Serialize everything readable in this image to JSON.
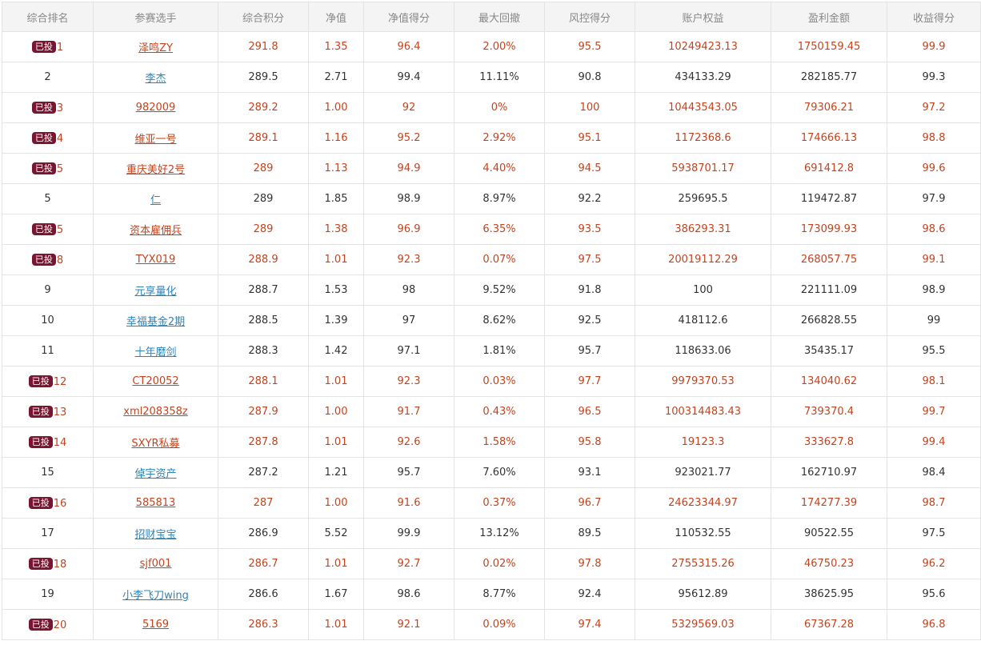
{
  "badge_label": "已投",
  "colors": {
    "invested_text": "#c2441f",
    "normal_text": "#333333",
    "link": "#2c84b8",
    "badge_bg": "#7a1531",
    "header_bg": "#f4f4f4"
  },
  "headers": [
    "综合排名",
    "参赛选手",
    "综合积分",
    "净值",
    "净值得分",
    "最大回撤",
    "风控得分",
    "账户权益",
    "盈利金额",
    "收益得分"
  ],
  "rows": [
    {
      "invested": true,
      "rank": "1",
      "name": "泽鸣ZY",
      "score": "291.8",
      "nav": "1.35",
      "nav_score": "96.4",
      "drawdown": "2.00%",
      "risk_score": "95.5",
      "equity": "10249423.13",
      "profit": "1750159.45",
      "return_score": "99.9"
    },
    {
      "invested": false,
      "rank": "2",
      "name": "李杰",
      "score": "289.5",
      "nav": "2.71",
      "nav_score": "99.4",
      "drawdown": "11.11%",
      "risk_score": "90.8",
      "equity": "434133.29",
      "profit": "282185.77",
      "return_score": "99.3"
    },
    {
      "invested": true,
      "rank": "3",
      "name": "982009",
      "score": "289.2",
      "nav": "1.00",
      "nav_score": "92",
      "drawdown": "0%",
      "risk_score": "100",
      "equity": "10443543.05",
      "profit": "79306.21",
      "return_score": "97.2"
    },
    {
      "invested": true,
      "rank": "4",
      "name": "维亚一号",
      "score": "289.1",
      "nav": "1.16",
      "nav_score": "95.2",
      "drawdown": "2.92%",
      "risk_score": "95.1",
      "equity": "1172368.6",
      "profit": "174666.13",
      "return_score": "98.8"
    },
    {
      "invested": true,
      "rank": "5",
      "name": "重庆美好2号",
      "score": "289",
      "nav": "1.13",
      "nav_score": "94.9",
      "drawdown": "4.40%",
      "risk_score": "94.5",
      "equity": "5938701.17",
      "profit": "691412.8",
      "return_score": "99.6"
    },
    {
      "invested": false,
      "rank": "5",
      "name": "仁",
      "score": "289",
      "nav": "1.85",
      "nav_score": "98.9",
      "drawdown": "8.97%",
      "risk_score": "92.2",
      "equity": "259695.5",
      "profit": "119472.87",
      "return_score": "97.9"
    },
    {
      "invested": true,
      "rank": "5",
      "name": "资本雇佣兵",
      "score": "289",
      "nav": "1.38",
      "nav_score": "96.9",
      "drawdown": "6.35%",
      "risk_score": "93.5",
      "equity": "386293.31",
      "profit": "173099.93",
      "return_score": "98.6"
    },
    {
      "invested": true,
      "rank": "8",
      "name": "TYX019",
      "score": "288.9",
      "nav": "1.01",
      "nav_score": "92.3",
      "drawdown": "0.07%",
      "risk_score": "97.5",
      "equity": "20019112.29",
      "profit": "268057.75",
      "return_score": "99.1"
    },
    {
      "invested": false,
      "rank": "9",
      "name": "元享量化",
      "score": "288.7",
      "nav": "1.53",
      "nav_score": "98",
      "drawdown": "9.52%",
      "risk_score": "91.8",
      "equity": "100",
      "profit": "221111.09",
      "return_score": "98.9"
    },
    {
      "invested": false,
      "rank": "10",
      "name": "幸福基金2期",
      "score": "288.5",
      "nav": "1.39",
      "nav_score": "97",
      "drawdown": "8.62%",
      "risk_score": "92.5",
      "equity": "418112.6",
      "profit": "266828.55",
      "return_score": "99"
    },
    {
      "invested": false,
      "rank": "11",
      "name": "十年磨剑",
      "score": "288.3",
      "nav": "1.42",
      "nav_score": "97.1",
      "drawdown": "1.81%",
      "risk_score": "95.7",
      "equity": "118633.06",
      "profit": "35435.17",
      "return_score": "95.5"
    },
    {
      "invested": true,
      "rank": "12",
      "name": "CT20052",
      "score": "288.1",
      "nav": "1.01",
      "nav_score": "92.3",
      "drawdown": "0.03%",
      "risk_score": "97.7",
      "equity": "9979370.53",
      "profit": "134040.62",
      "return_score": "98.1"
    },
    {
      "invested": true,
      "rank": "13",
      "name": "xml208358z",
      "score": "287.9",
      "nav": "1.00",
      "nav_score": "91.7",
      "drawdown": "0.43%",
      "risk_score": "96.5",
      "equity": "100314483.43",
      "profit": "739370.4",
      "return_score": "99.7"
    },
    {
      "invested": true,
      "rank": "14",
      "name": "SXYR私募",
      "score": "287.8",
      "nav": "1.01",
      "nav_score": "92.6",
      "drawdown": "1.58%",
      "risk_score": "95.8",
      "equity": "19123.3",
      "profit": "333627.8",
      "return_score": "99.4"
    },
    {
      "invested": false,
      "rank": "15",
      "name": "倬宇资产",
      "score": "287.2",
      "nav": "1.21",
      "nav_score": "95.7",
      "drawdown": "7.60%",
      "risk_score": "93.1",
      "equity": "923021.77",
      "profit": "162710.97",
      "return_score": "98.4"
    },
    {
      "invested": true,
      "rank": "16",
      "name": "585813",
      "score": "287",
      "nav": "1.00",
      "nav_score": "91.6",
      "drawdown": "0.37%",
      "risk_score": "96.7",
      "equity": "24623344.97",
      "profit": "174277.39",
      "return_score": "98.7"
    },
    {
      "invested": false,
      "rank": "17",
      "name": "招财宝宝",
      "score": "286.9",
      "nav": "5.52",
      "nav_score": "99.9",
      "drawdown": "13.12%",
      "risk_score": "89.5",
      "equity": "110532.55",
      "profit": "90522.55",
      "return_score": "97.5"
    },
    {
      "invested": true,
      "rank": "18",
      "name": "sjf001",
      "score": "286.7",
      "nav": "1.01",
      "nav_score": "92.7",
      "drawdown": "0.02%",
      "risk_score": "97.8",
      "equity": "2755315.26",
      "profit": "46750.23",
      "return_score": "96.2"
    },
    {
      "invested": false,
      "rank": "19",
      "name": "小李飞刀wing",
      "score": "286.6",
      "nav": "1.67",
      "nav_score": "98.6",
      "drawdown": "8.77%",
      "risk_score": "92.4",
      "equity": "95612.89",
      "profit": "38625.95",
      "return_score": "95.6"
    },
    {
      "invested": true,
      "rank": "20",
      "name": "5169",
      "score": "286.3",
      "nav": "1.01",
      "nav_score": "92.1",
      "drawdown": "0.09%",
      "risk_score": "97.4",
      "equity": "5329569.03",
      "profit": "67367.28",
      "return_score": "96.8"
    }
  ]
}
